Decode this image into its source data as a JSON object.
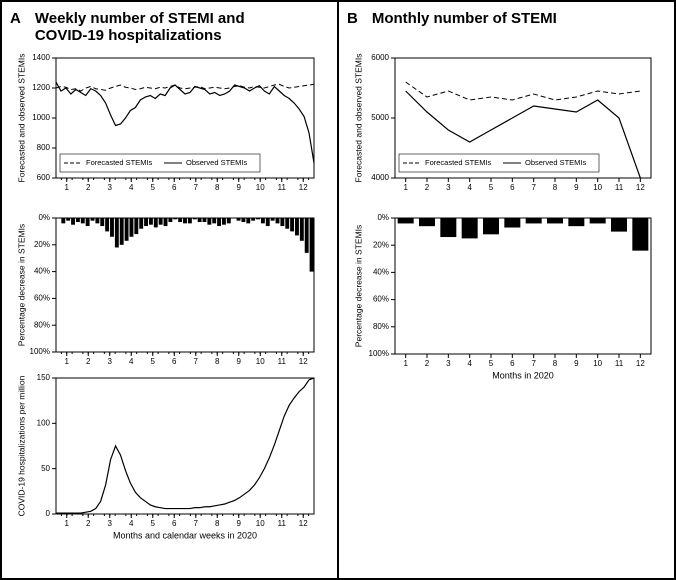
{
  "panelA": {
    "letter": "A",
    "title_lines": [
      "Weekly number of STEMI and",
      "COVID-19 hospitalizations"
    ],
    "xaxis_label": "Months and calendar weeks in 2020",
    "charts": {
      "line": {
        "type": "line",
        "ylabel": "Forecasted and observed STEMIs",
        "ylim": [
          600,
          1400
        ],
        "yticks": [
          600,
          800,
          1000,
          1200,
          1400
        ],
        "xticks": [
          1,
          2,
          3,
          4,
          5,
          6,
          7,
          8,
          9,
          10,
          11,
          12
        ],
        "legend": {
          "forecasted": "Forecasted STEMIs",
          "observed": "Observed STEMIs"
        },
        "n_weeks": 53,
        "forecasted": [
          1200,
          1210,
          1205,
          1190,
          1195,
          1180,
          1200,
          1210,
          1195,
          1190,
          1185,
          1200,
          1210,
          1220,
          1205,
          1200,
          1190,
          1195,
          1205,
          1200,
          1195,
          1205,
          1200,
          1210,
          1220,
          1200,
          1195,
          1200,
          1205,
          1210,
          1195,
          1200,
          1205,
          1200,
          1195,
          1200,
          1210,
          1215,
          1205,
          1200,
          1210,
          1205,
          1200,
          1210,
          1220,
          1225,
          1210,
          1200,
          1205,
          1210,
          1215,
          1220,
          1225
        ],
        "observed": [
          1240,
          1180,
          1200,
          1160,
          1190,
          1170,
          1150,
          1195,
          1180,
          1150,
          1100,
          1020,
          950,
          960,
          1000,
          1050,
          1070,
          1120,
          1140,
          1150,
          1130,
          1160,
          1150,
          1200,
          1220,
          1190,
          1160,
          1170,
          1210,
          1200,
          1190,
          1160,
          1170,
          1150,
          1160,
          1180,
          1220,
          1210,
          1200,
          1180,
          1200,
          1215,
          1180,
          1160,
          1210,
          1180,
          1150,
          1130,
          1100,
          1060,
          1010,
          900,
          700
        ],
        "line_color": "#000000",
        "background": "#ffffff"
      },
      "bar": {
        "type": "bar",
        "ylabel": "Percentage decrease in STEMIs",
        "ylim": [
          0,
          100
        ],
        "yticks": [
          0,
          20,
          40,
          60,
          80,
          100
        ],
        "xticks": [
          1,
          2,
          3,
          4,
          5,
          6,
          7,
          8,
          9,
          10,
          11,
          12
        ],
        "values": [
          0,
          4,
          2,
          5,
          3,
          4,
          6,
          2,
          4,
          6,
          10,
          14,
          22,
          20,
          17,
          14,
          12,
          8,
          6,
          5,
          7,
          5,
          6,
          3,
          1,
          3,
          4,
          4,
          1,
          3,
          3,
          5,
          4,
          6,
          5,
          4,
          0,
          2,
          3,
          4,
          2,
          1,
          4,
          6,
          2,
          4,
          6,
          8,
          10,
          13,
          17,
          26,
          40
        ],
        "bar_color": "#000000",
        "background": "#ffffff"
      },
      "covid": {
        "type": "line",
        "ylabel": "COVID-19 hospitalizations per million",
        "ylim": [
          0,
          150
        ],
        "yticks": [
          0,
          50,
          100,
          150
        ],
        "xticks": [
          1,
          2,
          3,
          4,
          5,
          6,
          7,
          8,
          9,
          10,
          11,
          12
        ],
        "values": [
          1,
          1,
          1,
          1,
          1,
          1,
          2,
          3,
          6,
          14,
          32,
          60,
          75,
          65,
          48,
          34,
          24,
          18,
          14,
          10,
          8,
          7,
          6,
          6,
          6,
          6,
          6,
          6,
          7,
          7,
          8,
          8,
          9,
          10,
          11,
          13,
          15,
          18,
          22,
          26,
          32,
          40,
          50,
          62,
          76,
          92,
          108,
          120,
          128,
          135,
          140,
          148,
          150
        ],
        "line_color": "#000000",
        "background": "#ffffff"
      }
    }
  },
  "panelB": {
    "letter": "B",
    "title_lines": [
      "Monthly number of STEMI"
    ],
    "xaxis_label": "Months in 2020",
    "charts": {
      "line": {
        "type": "line",
        "ylabel": "Forecasted and observed STEMIs",
        "ylim": [
          4000,
          6000
        ],
        "yticks": [
          4000,
          5000,
          6000
        ],
        "xticks": [
          1,
          2,
          3,
          4,
          5,
          6,
          7,
          8,
          9,
          10,
          11,
          12
        ],
        "legend": {
          "forecasted": "Forecasted STEMIs",
          "observed": "Observed STEMIs"
        },
        "forecasted": [
          5600,
          5350,
          5450,
          5300,
          5350,
          5300,
          5400,
          5300,
          5350,
          5450,
          5400,
          5450
        ],
        "observed": [
          5450,
          5100,
          4800,
          4600,
          4800,
          5000,
          5200,
          5150,
          5100,
          5300,
          5000,
          4000
        ],
        "line_color": "#000000",
        "background": "#ffffff"
      },
      "bar": {
        "type": "bar",
        "ylabel": "Percentage decrease in STEMIs",
        "ylim": [
          0,
          100
        ],
        "yticks": [
          0,
          20,
          40,
          60,
          80,
          100
        ],
        "xticks": [
          1,
          2,
          3,
          4,
          5,
          6,
          7,
          8,
          9,
          10,
          11,
          12
        ],
        "values": [
          4,
          6,
          14,
          15,
          12,
          7,
          4,
          4,
          6,
          4,
          10,
          24
        ],
        "bar_color": "#000000",
        "background": "#ffffff"
      }
    }
  },
  "style": {
    "axis_color": "#000000",
    "tick_fontsize": 9,
    "label_fontsize": 9,
    "title_fontsize": 15,
    "title_fontweight": "bold",
    "legend_fontsize": 9
  }
}
